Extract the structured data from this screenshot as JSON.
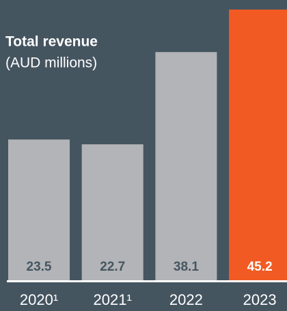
{
  "chart_data": {
    "type": "bar",
    "title": "Total revenue",
    "subtitle": "(AUD millions)",
    "categories": [
      "2020¹",
      "2021¹",
      "2022",
      "2023"
    ],
    "values": [
      23.5,
      22.7,
      38.1,
      45.2
    ],
    "colors": [
      "#b2b4b7",
      "#b2b4b7",
      "#b2b4b7",
      "#f15a22"
    ],
    "label_colors": [
      "#465661",
      "#465661",
      "#465661",
      "#ffffff"
    ]
  }
}
